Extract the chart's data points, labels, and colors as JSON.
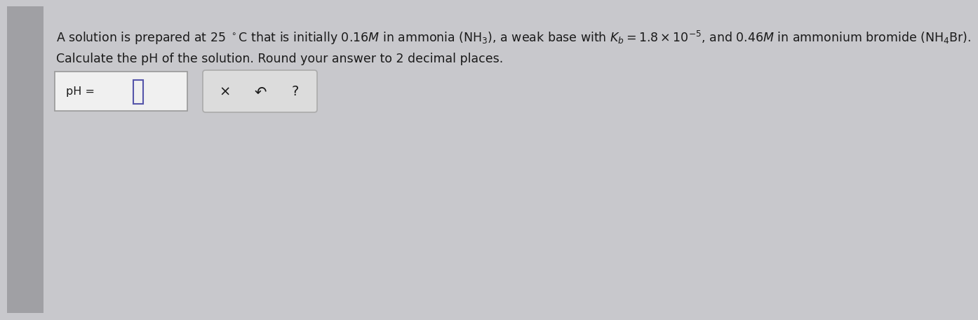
{
  "background_color": "#c8c8cc",
  "content_bg": "#e8e8ea",
  "text_line1": "A solution is prepared at 25 $^{\\circ}$C that is initially 0.16$M$ in ammonia $\\left(\\mathrm{NH_3}\\right)$, a weak base with $K_b = 1.8 \\times 10^{-5}$, and 0.46$M$ in ammonium bromide $\\left(\\mathrm{NH_4Br}\\right)$.",
  "text_line2": "Calculate the pH of the solution. Round your answer to 2 decimal places.",
  "text_color": "#1a1a1a",
  "font_size_main": 12.5,
  "font_size_ph": 11.5,
  "font_size_icons": 14,
  "box1_facecolor": "#f0f0f0",
  "box1_edgecolor": "#999999",
  "box2_facecolor": "#dcdcdc",
  "box2_edgecolor": "#aaaaaa",
  "cursor_edgecolor": "#5555aa",
  "cursor_facecolor": "#f0f0f0"
}
